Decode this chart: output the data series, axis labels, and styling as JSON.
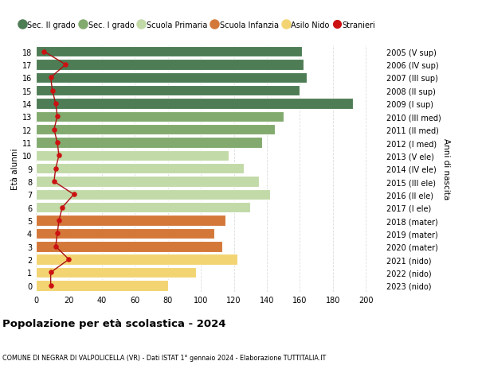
{
  "ages": [
    18,
    17,
    16,
    15,
    14,
    13,
    12,
    11,
    10,
    9,
    8,
    7,
    6,
    5,
    4,
    3,
    2,
    1,
    0
  ],
  "bar_values": [
    161,
    162,
    164,
    160,
    192,
    150,
    145,
    137,
    117,
    126,
    135,
    142,
    130,
    115,
    108,
    113,
    122,
    97,
    80
  ],
  "stranieri": [
    5,
    18,
    9,
    10,
    12,
    13,
    11,
    13,
    14,
    12,
    11,
    23,
    16,
    14,
    13,
    12,
    20,
    9,
    9
  ],
  "right_labels": [
    "2005 (V sup)",
    "2006 (IV sup)",
    "2007 (III sup)",
    "2008 (II sup)",
    "2009 (I sup)",
    "2010 (III med)",
    "2011 (II med)",
    "2012 (I med)",
    "2013 (V ele)",
    "2014 (IV ele)",
    "2015 (III ele)",
    "2016 (II ele)",
    "2017 (I ele)",
    "2018 (mater)",
    "2019 (mater)",
    "2020 (mater)",
    "2021 (nido)",
    "2022 (nido)",
    "2023 (nido)"
  ],
  "bar_colors": [
    "#4e7d55",
    "#4e7d55",
    "#4e7d55",
    "#4e7d55",
    "#4e7d55",
    "#82aa6e",
    "#82aa6e",
    "#82aa6e",
    "#c2d9a8",
    "#c2d9a8",
    "#c2d9a8",
    "#c2d9a8",
    "#c2d9a8",
    "#d4783a",
    "#d4783a",
    "#d4783a",
    "#f2d472",
    "#f2d472",
    "#f2d472"
  ],
  "legend_labels": [
    "Sec. II grado",
    "Sec. I grado",
    "Scuola Primaria",
    "Scuola Infanzia",
    "Asilo Nido",
    "Stranieri"
  ],
  "legend_colors": [
    "#4e7d55",
    "#82aa6e",
    "#c2d9a8",
    "#d4783a",
    "#f2d472",
    "#cc1111"
  ],
  "title": "Popolazione per età scolastica - 2024",
  "subtitle": "COMUNE DI NEGRAR DI VALPOLICELLA (VR) - Dati ISTAT 1° gennaio 2024 - Elaborazione TUTTITALIA.IT",
  "ylabel": "Età alunni",
  "right_ylabel": "Anni di nascita",
  "xlim": [
    0,
    210
  ],
  "background_color": "#ffffff",
  "grid_color": "#dddddd",
  "stranieri_color": "#cc1111",
  "stranieri_line_color": "#aa1111"
}
